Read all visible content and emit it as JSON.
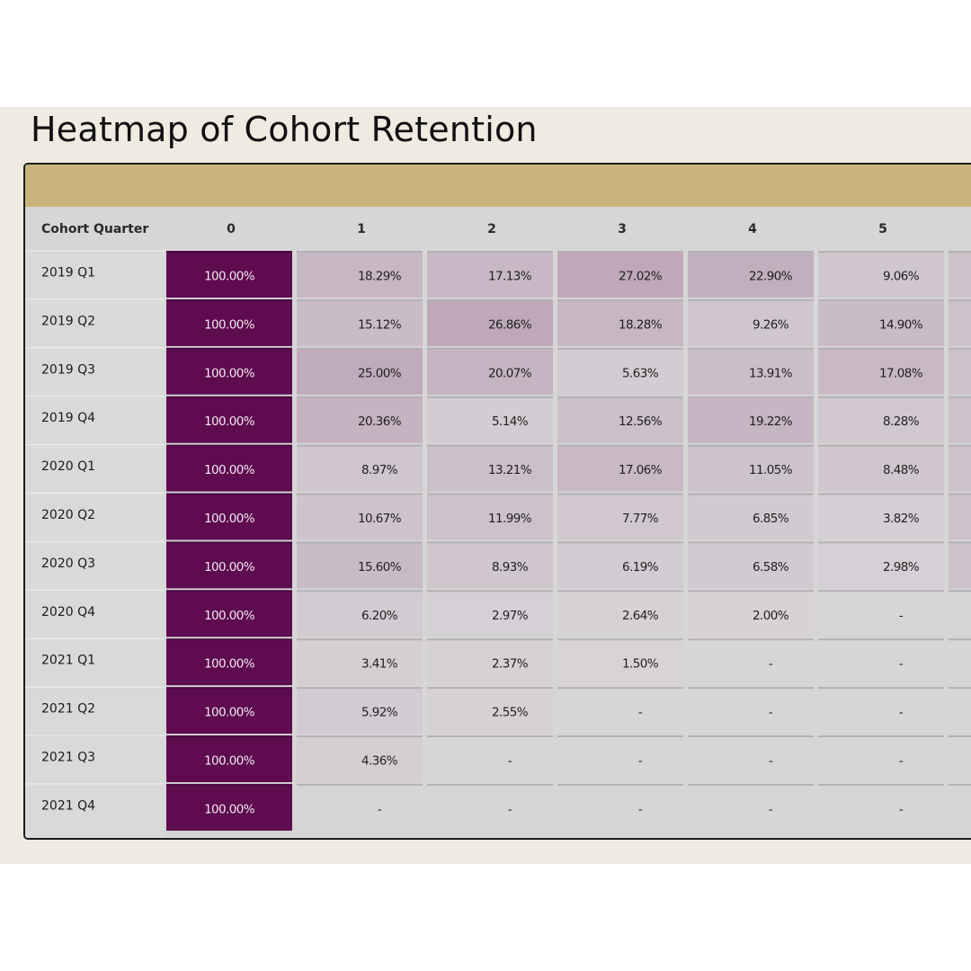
{
  "title": "Heatmap of Cohort Retention",
  "colors": {
    "max": "#5e0b4f",
    "min": "#d8d5d8",
    "text_dark": "#1f1f1f",
    "text_light": "#f3e9f1",
    "header_bar": "#c9b57c"
  },
  "chart_data": {
    "type": "heatmap",
    "title": "Heatmap of Cohort Retention",
    "row_header": "Cohort Quarter",
    "columns": [
      "0",
      "1",
      "2",
      "3",
      "4",
      "5"
    ],
    "rows": [
      "2019 Q1",
      "2019 Q2",
      "2019 Q3",
      "2019 Q4",
      "2020 Q1",
      "2020 Q2",
      "2020 Q3",
      "2020 Q4",
      "2021 Q1",
      "2021 Q2",
      "2021 Q3",
      "2021 Q4"
    ],
    "values": [
      [
        100.0,
        18.29,
        17.13,
        27.02,
        22.9,
        9.06
      ],
      [
        100.0,
        15.12,
        26.86,
        18.28,
        9.26,
        14.9
      ],
      [
        100.0,
        25.0,
        20.07,
        5.63,
        13.91,
        17.08
      ],
      [
        100.0,
        20.36,
        5.14,
        12.56,
        19.22,
        8.28
      ],
      [
        100.0,
        8.97,
        13.21,
        17.06,
        11.05,
        8.48
      ],
      [
        100.0,
        10.67,
        11.99,
        7.77,
        6.85,
        3.82
      ],
      [
        100.0,
        15.6,
        8.93,
        6.19,
        6.58,
        2.98
      ],
      [
        100.0,
        6.2,
        2.97,
        2.64,
        2.0,
        null
      ],
      [
        100.0,
        3.41,
        2.37,
        1.5,
        null,
        null
      ],
      [
        100.0,
        5.92,
        2.55,
        null,
        null,
        null
      ],
      [
        100.0,
        4.36,
        null,
        null,
        null,
        null
      ],
      [
        100.0,
        null,
        null,
        null,
        null,
        null
      ]
    ],
    "missing_label": "-",
    "value_suffix": "%"
  }
}
